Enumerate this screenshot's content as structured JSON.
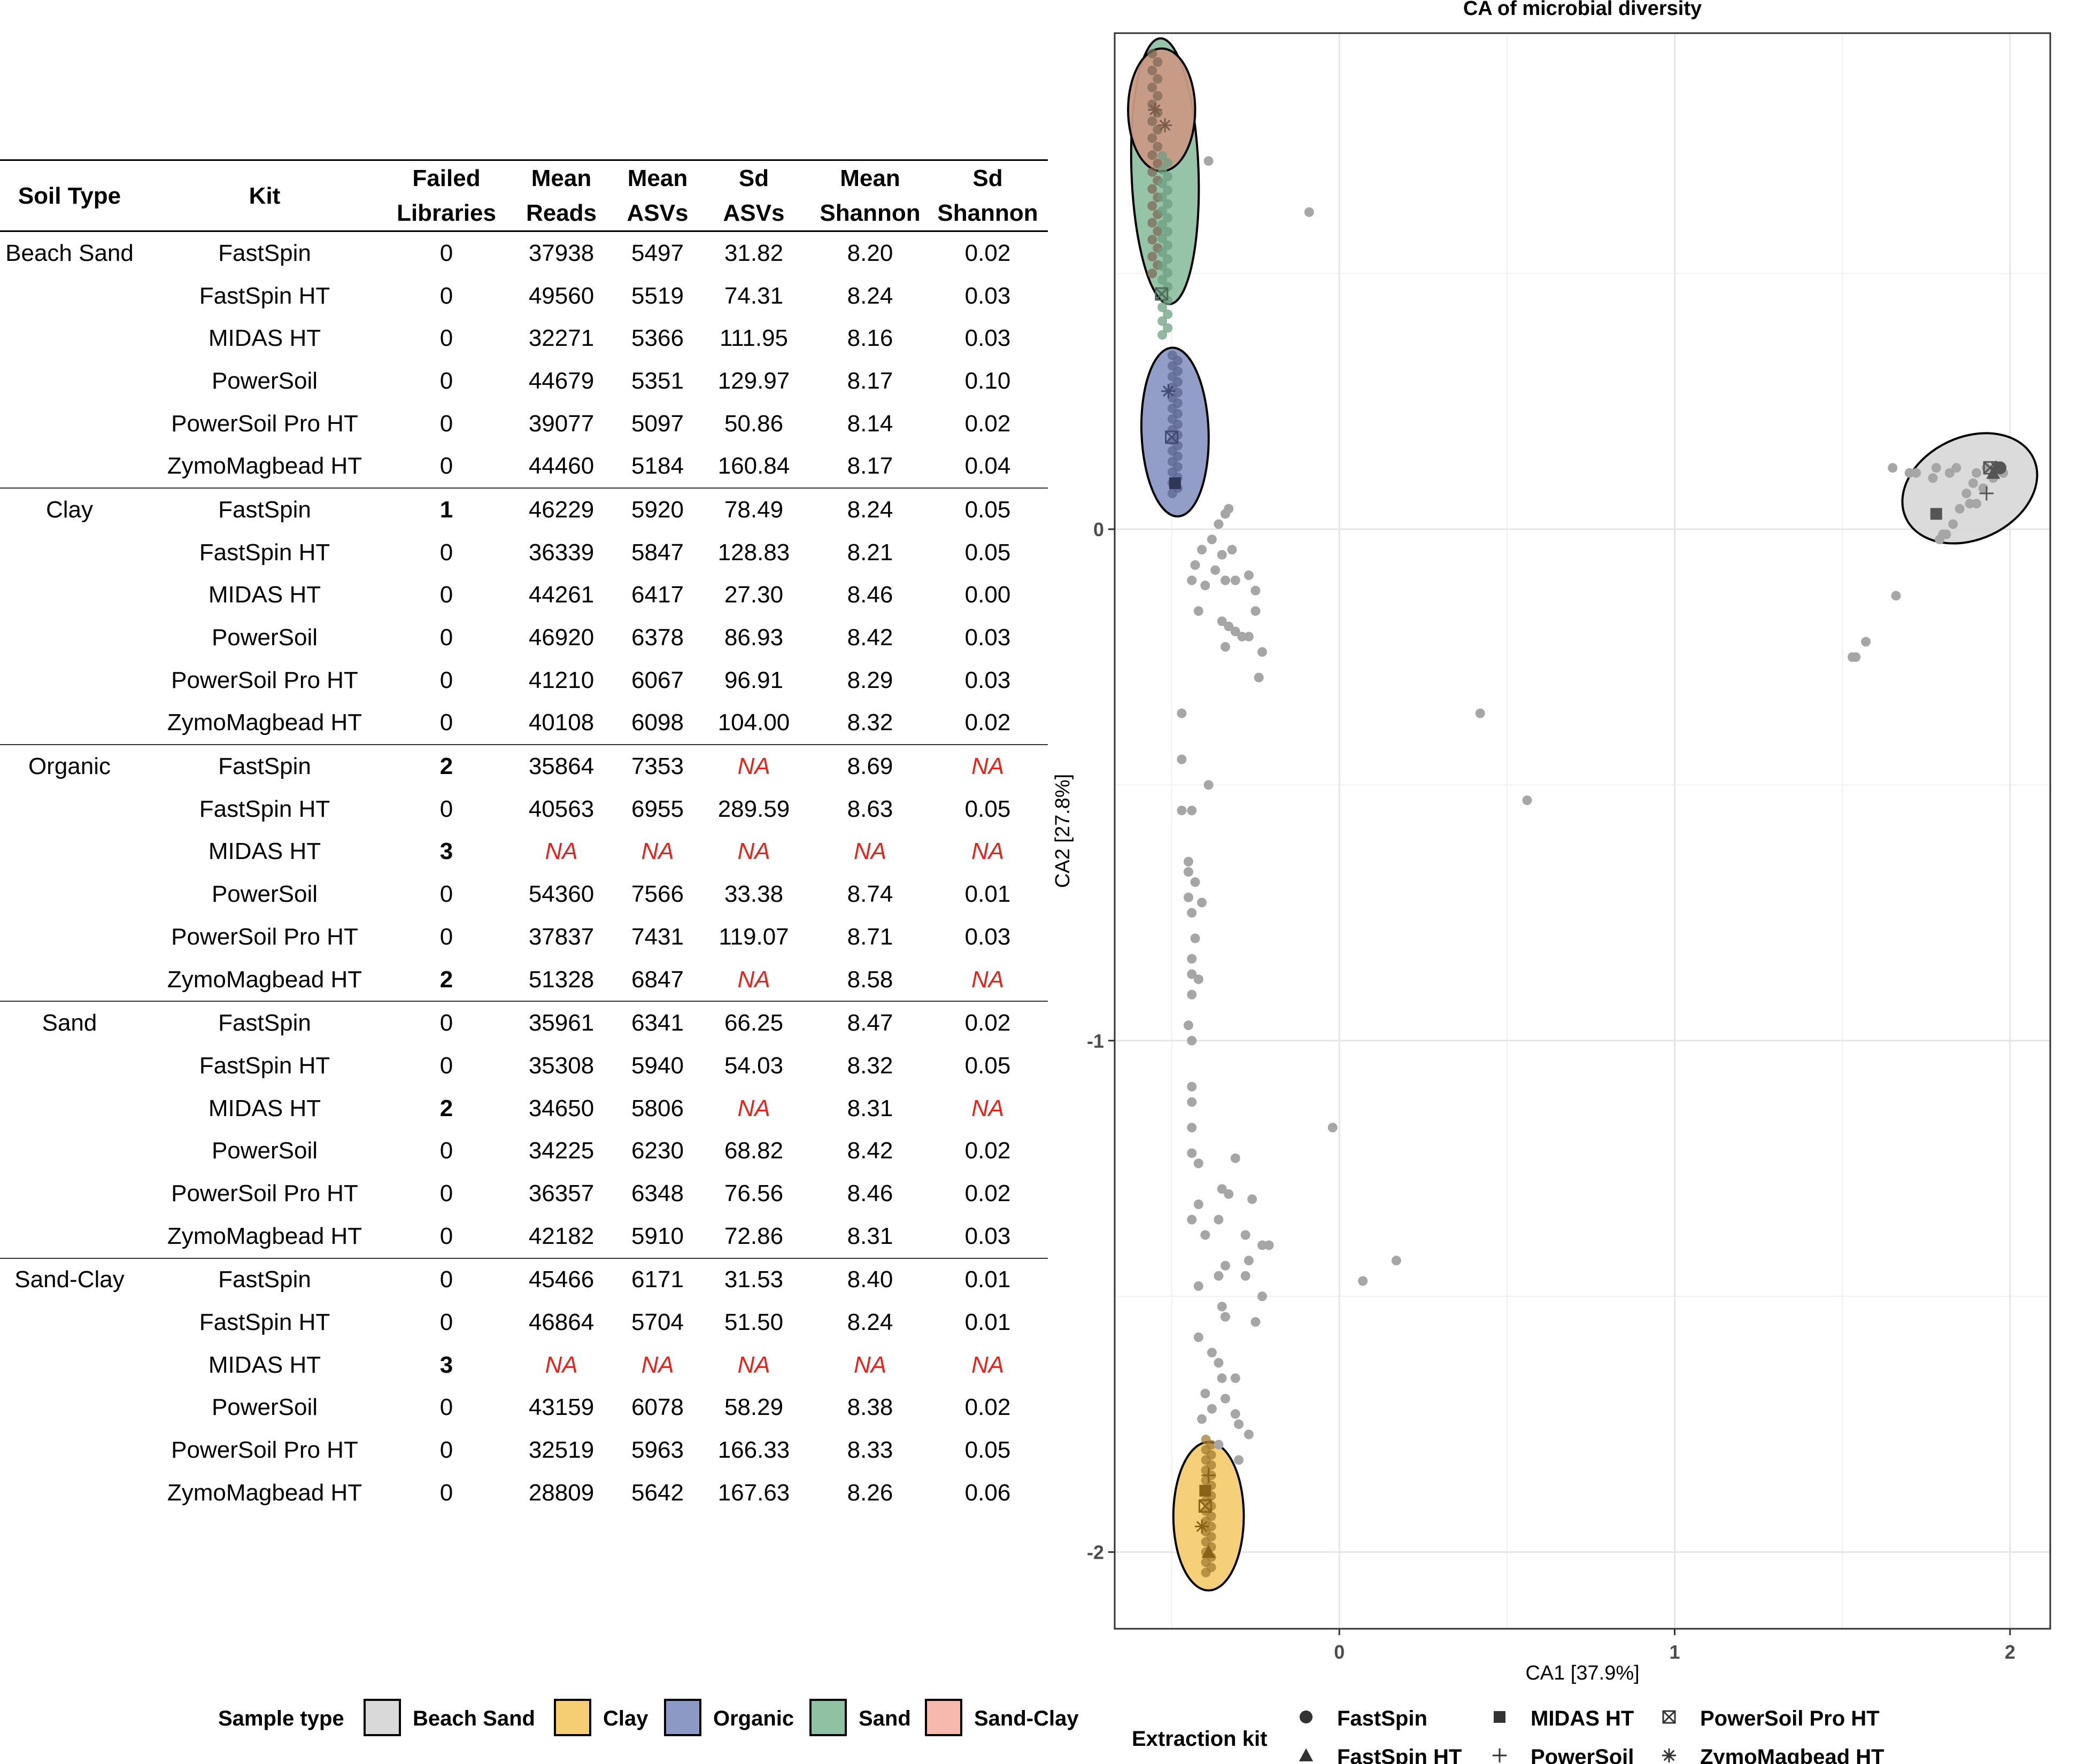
{
  "table": {
    "headers": [
      [
        "Soil Type"
      ],
      [
        "Kit"
      ],
      [
        "Failed",
        "Libraries"
      ],
      [
        "Mean",
        "Reads"
      ],
      [
        "Mean",
        "ASVs"
      ],
      [
        "Sd",
        "ASVs"
      ],
      [
        "Mean",
        "Shannon"
      ],
      [
        "Sd",
        "Shannon"
      ]
    ],
    "groups": [
      {
        "soil": "Beach Sand",
        "rows": [
          [
            "FastSpin",
            "0",
            "37938",
            "5497",
            "31.82",
            "8.20",
            "0.02"
          ],
          [
            "FastSpin HT",
            "0",
            "49560",
            "5519",
            "74.31",
            "8.24",
            "0.03"
          ],
          [
            "MIDAS HT",
            "0",
            "32271",
            "5366",
            "111.95",
            "8.16",
            "0.03"
          ],
          [
            "PowerSoil",
            "0",
            "44679",
            "5351",
            "129.97",
            "8.17",
            "0.10"
          ],
          [
            "PowerSoil Pro HT",
            "0",
            "39077",
            "5097",
            "50.86",
            "8.14",
            "0.02"
          ],
          [
            "ZymoMagbead HT",
            "0",
            "44460",
            "5184",
            "160.84",
            "8.17",
            "0.04"
          ]
        ]
      },
      {
        "soil": "Clay",
        "rows": [
          [
            "FastSpin",
            "1",
            "46229",
            "5920",
            "78.49",
            "8.24",
            "0.05"
          ],
          [
            "FastSpin HT",
            "0",
            "36339",
            "5847",
            "128.83",
            "8.21",
            "0.05"
          ],
          [
            "MIDAS HT",
            "0",
            "44261",
            "6417",
            "27.30",
            "8.46",
            "0.00"
          ],
          [
            "PowerSoil",
            "0",
            "46920",
            "6378",
            "86.93",
            "8.42",
            "0.03"
          ],
          [
            "PowerSoil Pro HT",
            "0",
            "41210",
            "6067",
            "96.91",
            "8.29",
            "0.03"
          ],
          [
            "ZymoMagbead HT",
            "0",
            "40108",
            "6098",
            "104.00",
            "8.32",
            "0.02"
          ]
        ]
      },
      {
        "soil": "Organic",
        "rows": [
          [
            "FastSpin",
            "2",
            "35864",
            "7353",
            "NA",
            "8.69",
            "NA"
          ],
          [
            "FastSpin HT",
            "0",
            "40563",
            "6955",
            "289.59",
            "8.63",
            "0.05"
          ],
          [
            "MIDAS HT",
            "3",
            "NA",
            "NA",
            "NA",
            "NA",
            "NA"
          ],
          [
            "PowerSoil",
            "0",
            "54360",
            "7566",
            "33.38",
            "8.74",
            "0.01"
          ],
          [
            "PowerSoil Pro HT",
            "0",
            "37837",
            "7431",
            "119.07",
            "8.71",
            "0.03"
          ],
          [
            "ZymoMagbead HT",
            "2",
            "51328",
            "6847",
            "NA",
            "8.58",
            "NA"
          ]
        ]
      },
      {
        "soil": "Sand",
        "rows": [
          [
            "FastSpin",
            "0",
            "35961",
            "6341",
            "66.25",
            "8.47",
            "0.02"
          ],
          [
            "FastSpin HT",
            "0",
            "35308",
            "5940",
            "54.03",
            "8.32",
            "0.05"
          ],
          [
            "MIDAS HT",
            "2",
            "34650",
            "5806",
            "NA",
            "8.31",
            "NA"
          ],
          [
            "PowerSoil",
            "0",
            "34225",
            "6230",
            "68.82",
            "8.42",
            "0.02"
          ],
          [
            "PowerSoil Pro HT",
            "0",
            "36357",
            "6348",
            "76.56",
            "8.46",
            "0.02"
          ],
          [
            "ZymoMagbead HT",
            "0",
            "42182",
            "5910",
            "72.86",
            "8.31",
            "0.03"
          ]
        ]
      },
      {
        "soil": "Sand-Clay",
        "rows": [
          [
            "FastSpin",
            "0",
            "45466",
            "6171",
            "31.53",
            "8.40",
            "0.01"
          ],
          [
            "FastSpin HT",
            "0",
            "46864",
            "5704",
            "51.50",
            "8.24",
            "0.01"
          ],
          [
            "MIDAS HT",
            "3",
            "NA",
            "NA",
            "NA",
            "NA",
            "NA"
          ],
          [
            "PowerSoil",
            "0",
            "43159",
            "6078",
            "58.29",
            "8.38",
            "0.02"
          ],
          [
            "PowerSoil Pro HT",
            "0",
            "32519",
            "5963",
            "166.33",
            "8.33",
            "0.05"
          ],
          [
            "ZymoMagbead HT",
            "0",
            "28809",
            "5642",
            "167.63",
            "8.26",
            "0.06"
          ]
        ]
      }
    ],
    "na_color": "#e8221b"
  },
  "chart_data": {
    "type": "scatter",
    "title": "CA of microbial diversity",
    "xlabel": "CA1 [37.9%]",
    "ylabel": "CA2 [27.8%]",
    "xlim": [
      -0.67,
      2.12
    ],
    "ylim": [
      -2.15,
      0.97
    ],
    "xticks": [
      0,
      1,
      2
    ],
    "yticks": [
      0,
      -1,
      -2
    ],
    "grid": true,
    "legend_position": "bottom",
    "sample_type_legend": {
      "title": "Sample type",
      "entries": [
        {
          "label": "Beach Sand",
          "color": "#d9d9d9"
        },
        {
          "label": "Clay",
          "color": "#f5cd72"
        },
        {
          "label": "Organic",
          "color": "#8c99c4"
        },
        {
          "label": "Sand",
          "color": "#8fc1a3"
        },
        {
          "label": "Sand-Clay",
          "color": "#f7b8ae"
        }
      ]
    },
    "kit_legend": {
      "title": "Extraction kit",
      "entries": [
        {
          "label": "FastSpin",
          "shape": "circle"
        },
        {
          "label": "MIDAS HT",
          "shape": "square"
        },
        {
          "label": "PowerSoil Pro HT",
          "shape": "boxed-x"
        },
        {
          "label": "FastSpin HT",
          "shape": "triangle"
        },
        {
          "label": "PowerSoil",
          "shape": "plus"
        },
        {
          "label": "ZymoMagbead HT",
          "shape": "asterisk"
        }
      ]
    },
    "ellipses": [
      {
        "group": "Sand",
        "center": [
          -0.52,
          0.7
        ],
        "rx": 0.1,
        "ry": 0.26,
        "angle": -2,
        "color": "#8fc1a3",
        "opacity": 0.95
      },
      {
        "group": "Sand-Clay",
        "center": [
          -0.53,
          0.82
        ],
        "rx": 0.1,
        "ry": 0.12,
        "angle": 0,
        "color": "#c99a85",
        "opacity": 0.95
      },
      {
        "group": "Organic",
        "center": [
          -0.49,
          0.19
        ],
        "rx": 0.1,
        "ry": 0.165,
        "angle": -2,
        "color": "#8c99c4",
        "opacity": 0.95
      },
      {
        "group": "Beach Sand",
        "center": [
          1.88,
          0.08
        ],
        "rx": 0.21,
        "ry": 0.1,
        "angle": -25,
        "color": "#d9d9d9",
        "opacity": 0.95
      },
      {
        "group": "Clay",
        "center": [
          -0.39,
          -1.93
        ],
        "rx": 0.105,
        "ry": 0.145,
        "angle": 0,
        "color": "#f5cd72",
        "opacity": 0.95
      }
    ],
    "points": [
      [
        -0.09,
        0.62
      ],
      [
        -0.39,
        0.72
      ],
      [
        -0.33,
        0.04
      ],
      [
        -0.34,
        0.03
      ],
      [
        -0.36,
        0.01
      ],
      [
        -0.38,
        -0.02
      ],
      [
        -0.32,
        -0.04
      ],
      [
        -0.35,
        -0.05
      ],
      [
        -0.37,
        -0.08
      ],
      [
        -0.41,
        -0.04
      ],
      [
        -0.43,
        -0.07
      ],
      [
        -0.44,
        -0.1
      ],
      [
        -0.4,
        -0.11
      ],
      [
        -0.34,
        -0.1
      ],
      [
        -0.31,
        -0.1
      ],
      [
        -0.27,
        -0.09
      ],
      [
        -0.25,
        -0.12
      ],
      [
        -0.42,
        -0.16
      ],
      [
        -0.35,
        -0.18
      ],
      [
        -0.33,
        -0.19
      ],
      [
        -0.31,
        -0.2
      ],
      [
        -0.29,
        -0.21
      ],
      [
        -0.34,
        -0.23
      ],
      [
        -0.27,
        -0.21
      ],
      [
        -0.25,
        -0.16
      ],
      [
        -0.23,
        -0.24
      ],
      [
        -0.24,
        -0.29
      ],
      [
        -0.47,
        -0.36
      ],
      [
        -0.47,
        -0.45
      ],
      [
        -0.39,
        -0.5
      ],
      [
        -0.47,
        -0.55
      ],
      [
        -0.44,
        -0.55
      ],
      [
        -0.45,
        -0.65
      ],
      [
        -0.45,
        -0.67
      ],
      [
        -0.43,
        -0.69
      ],
      [
        -0.45,
        -0.72
      ],
      [
        -0.44,
        -0.75
      ],
      [
        -0.41,
        -0.73
      ],
      [
        -0.43,
        -0.8
      ],
      [
        -0.44,
        -0.84
      ],
      [
        -0.44,
        -0.87
      ],
      [
        -0.42,
        -0.88
      ],
      [
        -0.44,
        -0.91
      ],
      [
        -0.45,
        -0.97
      ],
      [
        -0.44,
        -1.0
      ],
      [
        -0.44,
        -1.09
      ],
      [
        -0.44,
        -1.12
      ],
      [
        -0.44,
        -1.17
      ],
      [
        -0.44,
        -1.22
      ],
      [
        -0.42,
        -1.24
      ],
      [
        -0.31,
        -1.23
      ],
      [
        -0.35,
        -1.29
      ],
      [
        -0.42,
        -1.32
      ],
      [
        -0.44,
        -1.35
      ],
      [
        -0.33,
        -1.3
      ],
      [
        -0.26,
        -1.31
      ],
      [
        -0.36,
        -1.35
      ],
      [
        -0.4,
        -1.38
      ],
      [
        -0.28,
        -1.38
      ],
      [
        -0.23,
        -1.4
      ],
      [
        -0.21,
        -1.4
      ],
      [
        -0.27,
        -1.43
      ],
      [
        -0.34,
        -1.44
      ],
      [
        -0.36,
        -1.46
      ],
      [
        -0.42,
        -1.48
      ],
      [
        -0.28,
        -1.46
      ],
      [
        -0.23,
        -1.5
      ],
      [
        -0.35,
        -1.52
      ],
      [
        -0.34,
        -1.54
      ],
      [
        -0.25,
        -1.55
      ],
      [
        -0.42,
        -1.58
      ],
      [
        -0.38,
        -1.61
      ],
      [
        -0.36,
        -1.63
      ],
      [
        -0.31,
        -1.66
      ],
      [
        -0.35,
        -1.66
      ],
      [
        -0.4,
        -1.69
      ],
      [
        -0.34,
        -1.7
      ],
      [
        -0.41,
        -1.74
      ],
      [
        -0.38,
        -1.72
      ],
      [
        -0.31,
        -1.73
      ],
      [
        -0.3,
        -1.75
      ],
      [
        -0.27,
        -1.77
      ],
      [
        -0.36,
        -1.79
      ],
      [
        -0.3,
        -1.82
      ],
      [
        -0.02,
        -1.17
      ],
      [
        0.07,
        -1.47
      ],
      [
        0.17,
        -1.43
      ],
      [
        0.42,
        -0.36
      ],
      [
        0.56,
        -0.53
      ],
      [
        1.66,
        -0.13
      ],
      [
        1.57,
        -0.22
      ],
      [
        1.54,
        -0.25
      ],
      [
        1.53,
        -0.25
      ],
      [
        1.65,
        0.12
      ],
      [
        1.7,
        0.11
      ],
      [
        1.72,
        0.11
      ],
      [
        1.78,
        0.12
      ],
      [
        1.82,
        0.11
      ],
      [
        1.77,
        0.1
      ],
      [
        1.84,
        0.12
      ],
      [
        1.9,
        0.11
      ],
      [
        1.93,
        0.12
      ],
      [
        1.96,
        0.12
      ],
      [
        1.98,
        0.11
      ],
      [
        1.95,
        0.1
      ],
      [
        1.89,
        0.09
      ],
      [
        1.87,
        0.07
      ],
      [
        1.85,
        0.04
      ],
      [
        1.83,
        0.01
      ],
      [
        1.81,
        -0.01
      ],
      [
        1.79,
        -0.02
      ],
      [
        1.8,
        -0.01
      ],
      [
        1.9,
        0.05
      ],
      [
        1.92,
        0.08
      ],
      [
        1.88,
        0.05
      ]
    ],
    "cluster_strips": [
      {
        "group": "Sand-Clay",
        "x": -0.55,
        "y_from": 0.93,
        "y_to": 0.5,
        "color": "#7f6a58"
      },
      {
        "group": "Sand",
        "x": -0.52,
        "y_from": 0.73,
        "y_to": 0.38,
        "color": "#6f9f82"
      },
      {
        "group": "Organic",
        "x": -0.49,
        "y_from": 0.34,
        "y_to": 0.07,
        "color": "#5c6691"
      },
      {
        "group": "Clay",
        "x": -0.39,
        "y_from": -1.78,
        "y_to": -2.04,
        "color": "#a37c30"
      }
    ],
    "kit_markers": [
      {
        "shape": "asterisk",
        "x": -0.55,
        "y": 0.82,
        "color": "#7a5c4c"
      },
      {
        "shape": "asterisk",
        "x": -0.52,
        "y": 0.79,
        "color": "#7a5c4c"
      },
      {
        "shape": "boxed-x",
        "x": -0.53,
        "y": 0.46,
        "color": "#4a6a57"
      },
      {
        "shape": "asterisk",
        "x": -0.51,
        "y": 0.27,
        "color": "#414b72"
      },
      {
        "shape": "boxed-x",
        "x": -0.5,
        "y": 0.18,
        "color": "#414b72"
      },
      {
        "shape": "square",
        "x": -0.49,
        "y": 0.09,
        "color": "#2f3658"
      },
      {
        "shape": "triangle",
        "x": -0.39,
        "y": -2.0,
        "color": "#8a6318"
      },
      {
        "shape": "square",
        "x": -0.4,
        "y": -1.88,
        "color": "#8a6318"
      },
      {
        "shape": "boxed-x",
        "x": -0.4,
        "y": -1.91,
        "color": "#8a6318"
      },
      {
        "shape": "asterisk",
        "x": -0.41,
        "y": -1.95,
        "color": "#8a6318"
      },
      {
        "shape": "plus",
        "x": -0.39,
        "y": -1.85,
        "color": "#8a6318"
      },
      {
        "shape": "square",
        "x": 1.78,
        "y": 0.03,
        "color": "#555555"
      },
      {
        "shape": "plus",
        "x": 1.93,
        "y": 0.07,
        "color": "#555555"
      },
      {
        "shape": "asterisk",
        "x": 1.96,
        "y": 0.12,
        "color": "#555555"
      },
      {
        "shape": "boxed-x",
        "x": 1.94,
        "y": 0.12,
        "color": "#555555"
      },
      {
        "shape": "triangle",
        "x": 1.95,
        "y": 0.11,
        "color": "#555555"
      },
      {
        "shape": "circle",
        "x": 1.97,
        "y": 0.12,
        "color": "#555555"
      }
    ]
  }
}
